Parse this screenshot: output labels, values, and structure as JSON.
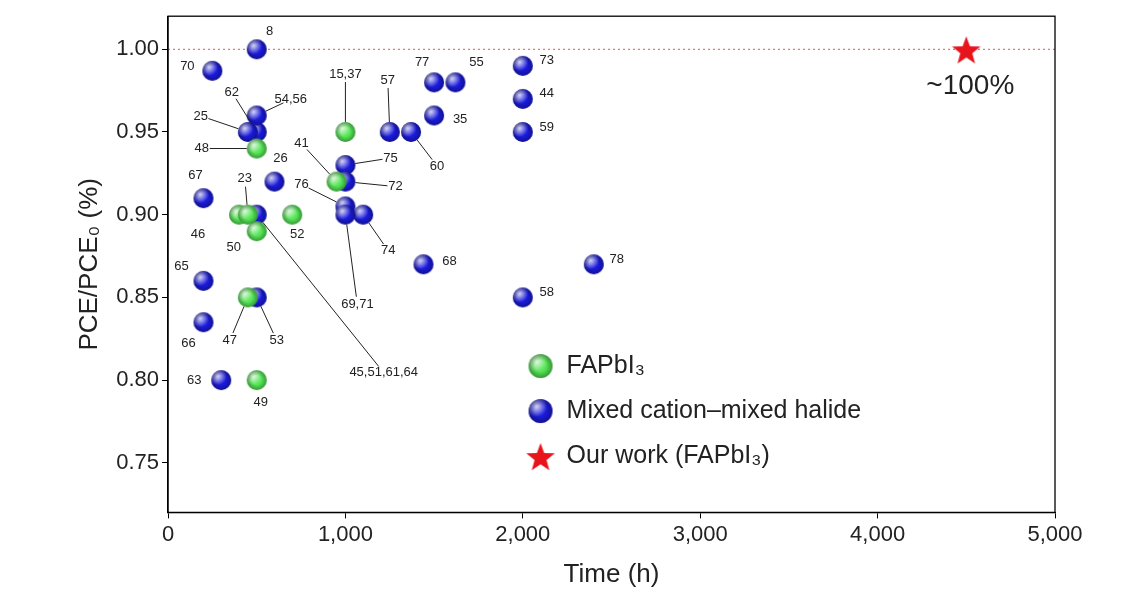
{
  "chart_data": {
    "type": "scatter",
    "xlabel": "Time (h)",
    "ylabel": "PCE/PCE₀ (%)",
    "xlim": [
      0,
      5000
    ],
    "xticks": [
      0,
      {
        "value": 1000,
        "label": "1,000"
      },
      {
        "value": 2000,
        "label": "2,000"
      },
      {
        "value": 3000,
        "label": "3,000"
      },
      {
        "value": 4000,
        "label": "4,000"
      },
      {
        "value": 5000,
        "label": "5,000"
      }
    ],
    "ylim": [
      0.72,
      1.02
    ],
    "yticks": [
      0.75,
      {
        "value": 0.8,
        "label": "0.80"
      },
      0.85,
      {
        "value": 0.9,
        "label": "0.90"
      },
      0.95,
      {
        "value": 1.0,
        "label": "1.00"
      }
    ],
    "grid": false,
    "legend": "bottom",
    "hlines": [
      {
        "y": 1.0,
        "color": "#e87878",
        "line_style": "dotted"
      }
    ],
    "series": [
      {
        "name": "FAPbI₃",
        "color": "#55e655",
        "marker": "sphere",
        "x": [
          500,
          400,
          500,
          450,
          700,
          450,
          500,
          1000,
          950
        ],
        "values": [
          0.94,
          0.9,
          0.89,
          0.9,
          0.9,
          0.85,
          0.8,
          0.95,
          0.92
        ],
        "labels": [
          "48",
          "46",
          "50",
          "23",
          "52",
          "47",
          "49",
          "15,37",
          "41"
        ]
      },
      {
        "name": "Mixed cation–mixed halide",
        "color": "#1a1adb",
        "marker": "sphere",
        "x": [
          500,
          250,
          500,
          450,
          500,
          600,
          200,
          500,
          200,
          200,
          300,
          500,
          1000,
          1000,
          1000,
          1100,
          1000,
          1250,
          1370,
          1500,
          1500,
          1620,
          1440,
          2000,
          2000,
          2000,
          2000,
          2400
        ],
        "values": [
          1.0,
          0.987,
          0.95,
          0.95,
          0.96,
          0.92,
          0.91,
          0.9,
          0.86,
          0.835,
          0.8,
          0.85,
          0.93,
          0.92,
          0.905,
          0.9,
          0.9,
          0.95,
          0.95,
          0.96,
          0.98,
          0.98,
          0.87,
          0.99,
          0.97,
          0.95,
          0.85,
          0.87
        ],
        "labels": [
          "8",
          "70",
          "62",
          "25",
          "54,56",
          "26",
          "67",
          "45,51,61,64",
          "65",
          "66",
          "63",
          "53",
          "75",
          "72",
          "76",
          "74",
          "69,71",
          "57",
          "60",
          "35",
          "77",
          "55",
          "68",
          "73",
          "44",
          "59",
          "58",
          "78"
        ]
      },
      {
        "name": "Our work (FAPbI₃)",
        "color": "#e8141c",
        "marker": "star",
        "x": [
          4500
        ],
        "values": [
          1.0
        ],
        "labels": [
          "~100%"
        ]
      }
    ]
  }
}
